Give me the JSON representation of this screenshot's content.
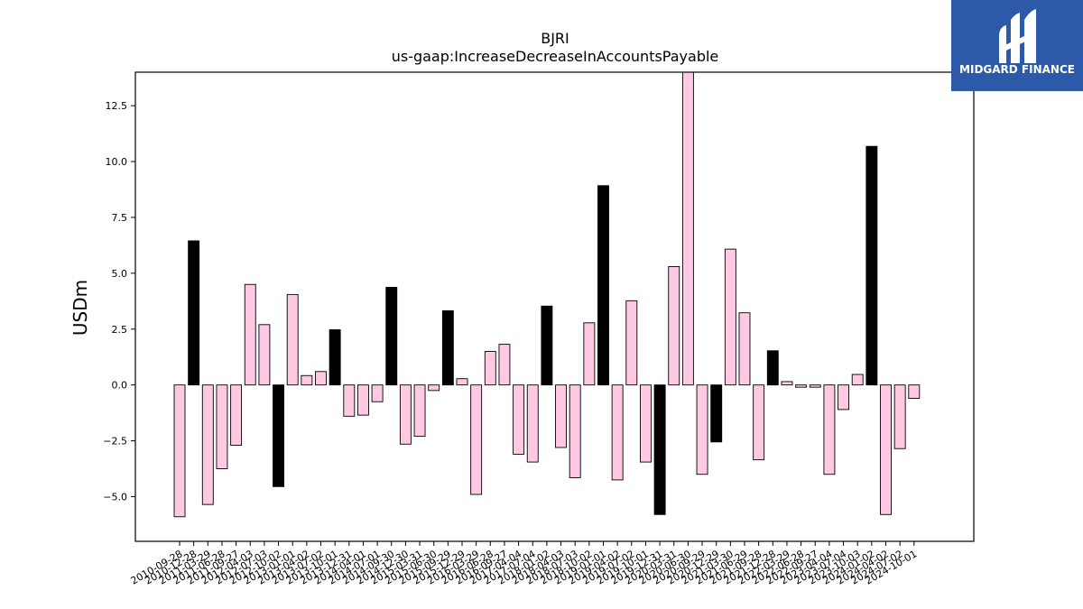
{
  "chart_data": {
    "type": "bar",
    "title": "BJRI",
    "subtitle": "us-gaap:IncreaseDecreaseInAccountsPayable",
    "xlabel": "",
    "ylabel": "USDm",
    "ylim": [
      -7.0,
      14.0
    ],
    "yticks": [
      -5.0,
      -2.5,
      0.0,
      2.5,
      5.0,
      7.5,
      10.0,
      12.5
    ],
    "ytick_labels": [
      "−5.0",
      "−2.5",
      "0.0",
      "2.5",
      "5.0",
      "7.5",
      "10.0",
      "12.5"
    ],
    "grid": false,
    "categories": [
      "2010-09-28",
      "2010-12-28",
      "2011-03-29",
      "2011-06-28",
      "2011-09-27",
      "2012-04-03",
      "2012-07-03",
      "2012-10-02",
      "2013-01-01",
      "2013-04-02",
      "2013-07-02",
      "2013-10-01",
      "2013-12-31",
      "2014-04-01",
      "2014-07-01",
      "2014-09-30",
      "2014-12-30",
      "2015-03-31",
      "2015-06-30",
      "2015-09-29",
      "2015-12-29",
      "2016-03-29",
      "2016-06-28",
      "2016-09-27",
      "2017-04-04",
      "2017-07-04",
      "2018-01-02",
      "2018-04-03",
      "2018-07-03",
      "2018-10-02",
      "2019-01-01",
      "2019-04-02",
      "2019-07-02",
      "2019-10-01",
      "2019-12-31",
      "2020-03-31",
      "2020-06-30",
      "2020-09-29",
      "2020-12-29",
      "2021-03-30",
      "2021-06-29",
      "2021-09-28",
      "2021-12-28",
      "2022-03-29",
      "2022-06-28",
      "2022-09-27",
      "2023-04-04",
      "2023-07-04",
      "2023-10-03",
      "2024-01-02",
      "2024-04-02",
      "2024-07-02",
      "2024-10-01"
    ],
    "series": [
      {
        "values": [
          -5.9,
          6.45,
          -5.35,
          -3.75,
          -2.7,
          4.5,
          2.7,
          -4.55,
          4.05,
          0.42,
          0.6,
          2.47,
          -1.4,
          -1.35,
          -0.75,
          4.37,
          -2.65,
          -2.3,
          -0.25,
          3.32,
          0.28,
          -4.9,
          1.5,
          1.82,
          -3.1,
          -3.45,
          3.53,
          -2.8,
          -4.15,
          2.78,
          8.92,
          -4.25,
          3.77,
          -3.45,
          -5.8,
          5.3,
          14.0,
          -4.0,
          -2.55,
          6.08,
          3.23,
          -3.35,
          1.53,
          0.15,
          -0.1,
          -0.1,
          -4.0,
          -1.1,
          0.47,
          10.68,
          -5.8,
          -2.85,
          -0.6
        ]
      }
    ],
    "highlight_indices": [
      1,
      7,
      11,
      15,
      19,
      26,
      30,
      34,
      38,
      42,
      49
    ],
    "colors": {
      "normal": "#ffc9e3",
      "highlight": "#000000",
      "edge": "#000000"
    }
  },
  "branding": {
    "logo_text": "MIDGARD FINANCE",
    "logo_icon": "midgard-logo-icon",
    "logo_bg": "#2c5aa8"
  }
}
